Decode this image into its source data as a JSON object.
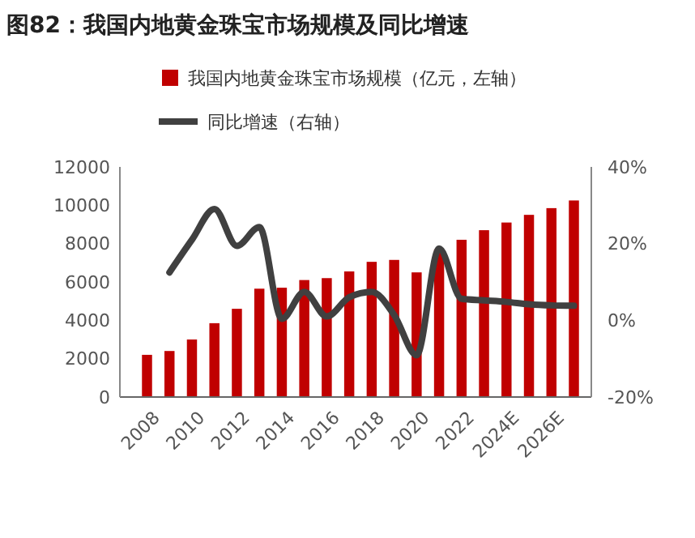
{
  "chart_data": {
    "type": "bar",
    "title": "图82：我国内地黄金珠宝市场规模及同比增速",
    "categories": [
      "2008",
      null,
      "2010",
      null,
      "2012",
      null,
      "2014",
      null,
      "2016",
      null,
      "2018",
      null,
      "2020",
      null,
      "2022",
      null,
      "2024E",
      null,
      "2026E",
      null
    ],
    "series": [
      {
        "name": "我国内地黄金珠宝市场规模（亿元，左轴）",
        "color": "#c00000",
        "values": [
          2200,
          2400,
          3000,
          3850,
          4600,
          5650,
          5700,
          6100,
          6200,
          6550,
          7050,
          7150,
          6500,
          7700,
          8200,
          8700,
          9100,
          9500,
          9850,
          10250
        ]
      },
      {
        "name": "同比增速（右轴）",
        "type": "line",
        "axis": "y2",
        "color": "#404040",
        "values": [
          null,
          12.5,
          21,
          29,
          19.4,
          24.3,
          0.4,
          7.4,
          1,
          6,
          7.4,
          1.4,
          -9.1,
          18.7,
          5.6,
          5.2,
          4.8,
          4.2,
          3.9,
          3.8
        ]
      }
    ],
    "ylim": [
      0,
      12000
    ],
    "yticks": [
      0,
      2000,
      4000,
      6000,
      8000,
      10000,
      12000
    ],
    "y2lim": [
      -20,
      40
    ],
    "y2ticks": [
      {
        "value": -20,
        "label": "-20%"
      },
      {
        "value": 0,
        "label": "0%"
      },
      {
        "value": 20,
        "label": "20%"
      },
      {
        "value": 40,
        "label": "40%"
      }
    ],
    "legend": "top",
    "grid": false
  }
}
